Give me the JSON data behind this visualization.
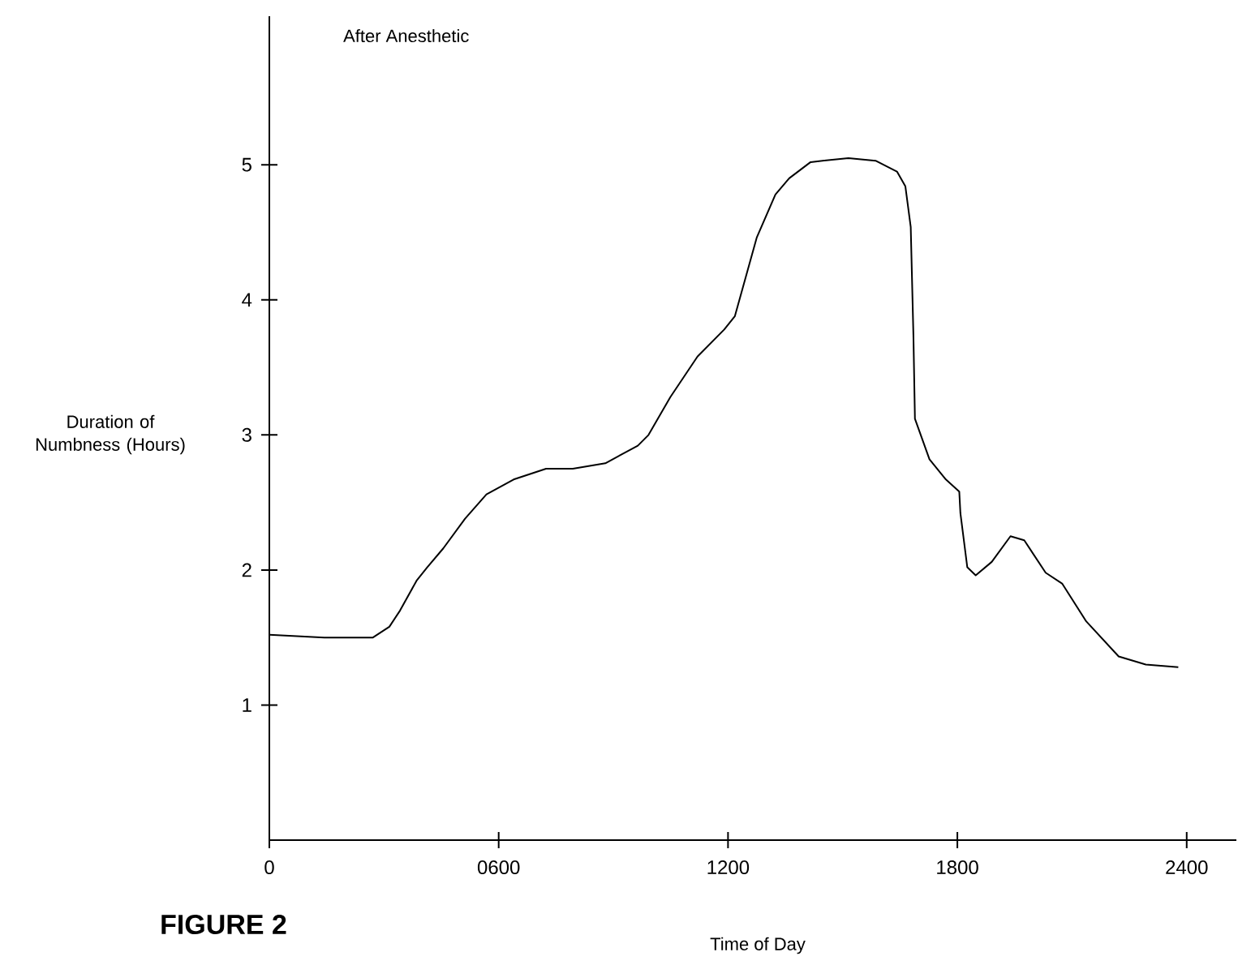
{
  "chart_data": {
    "type": "line",
    "title": "FIGURE 2",
    "xlabel": "Time of Day",
    "ylabel": "Duration of Numbness (Hours)",
    "annotations": [
      "After Anesthetic"
    ],
    "xlim": [
      0,
      2530
    ],
    "ylim": [
      0,
      6.1
    ],
    "xticks": [
      0,
      {
        "value": 600,
        "label": "0600"
      },
      1200,
      1800,
      2400
    ],
    "yticks": [
      1,
      2,
      3,
      4,
      5
    ],
    "series": [
      {
        "color": "#000000",
        "x": [
          0,
          144,
          271,
          314,
          342,
          385,
          413,
          455,
          512,
          568,
          639,
          724,
          794,
          879,
          964,
          992,
          1049,
          1120,
          1190,
          1218,
          1275,
          1324,
          1360,
          1416,
          1515,
          1586,
          1642,
          1664,
          1678,
          1685,
          1689,
          1727,
          1770,
          1805,
          1808,
          1826,
          1848,
          1890,
          1939,
          1975,
          2031,
          2074,
          2137,
          2222,
          2293,
          2378
        ],
        "values": [
          1.52,
          1.5,
          1.5,
          1.58,
          1.7,
          1.92,
          2.02,
          2.16,
          2.38,
          2.56,
          2.67,
          2.75,
          2.75,
          2.79,
          2.92,
          3.0,
          3.28,
          3.58,
          3.78,
          3.88,
          4.46,
          4.78,
          4.9,
          5.02,
          5.05,
          5.03,
          4.95,
          4.84,
          4.54,
          3.74,
          3.12,
          2.82,
          2.67,
          2.58,
          2.42,
          2.02,
          1.96,
          2.06,
          2.25,
          2.22,
          1.98,
          1.9,
          1.62,
          1.36,
          1.3,
          1.28
        ]
      }
    ]
  }
}
